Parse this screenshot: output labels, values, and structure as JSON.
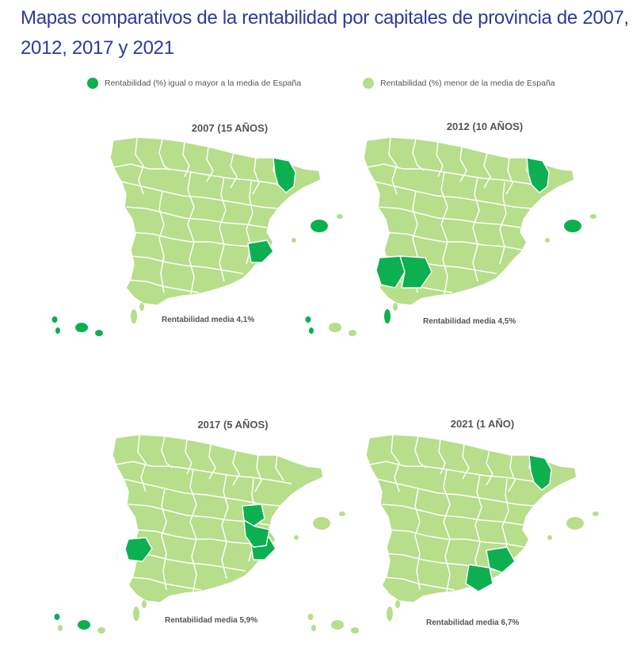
{
  "page_title": "Mapas comparativos de la rentabilidad por capitales de provincia de 2007, 2012, 2017 y 2021",
  "legend": {
    "high": {
      "label": "Rentabilidad (%) igual o mayor a la media de España",
      "color": "#0cb050"
    },
    "low": {
      "label": "Rentabilidad (%) menor de la media de España",
      "color": "#b6de8b"
    }
  },
  "maps": [
    {
      "title": "2007 (15 AÑOS)",
      "average_label": "Rentabilidad media  4,1%",
      "highlighted": [
        "girona",
        "alicante",
        "mallorca",
        "tenerife",
        "la-palma",
        "el-hierro",
        "gran-canaria-small"
      ]
    },
    {
      "title": "2012 (10 AÑOS)",
      "average_label": "Rentabilidad media  4,5%",
      "highlighted": [
        "girona",
        "huelva",
        "sevilla",
        "mallorca",
        "el-hierro",
        "la-palma",
        "fuerteventura"
      ]
    },
    {
      "title": "2017 (5 AÑOS)",
      "average_label": "Rentabilidad media  5,9%",
      "highlighted": [
        "castellon",
        "valencia",
        "alicante",
        "badajoz",
        "tenerife",
        "el-hierro"
      ]
    },
    {
      "title": "2021 (1 AÑO)",
      "average_label": "Rentabilidad media  6,7%",
      "highlighted": [
        "girona",
        "murcia",
        "almeria"
      ]
    }
  ]
}
